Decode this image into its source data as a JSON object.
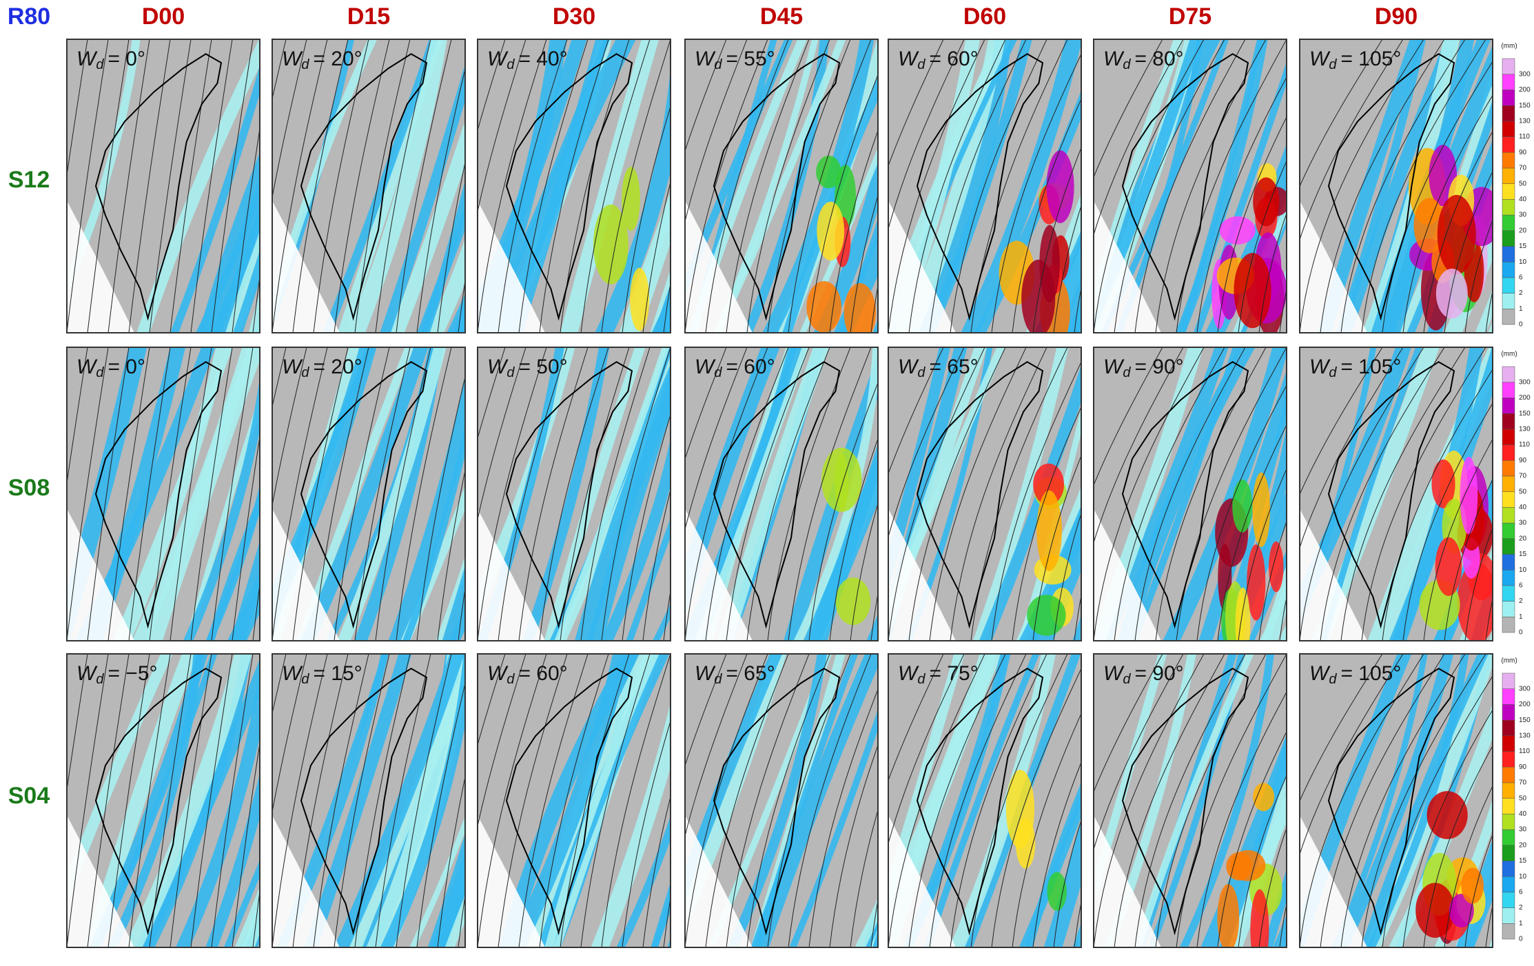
{
  "headers": {
    "corner": "R80",
    "columns": [
      "D00",
      "D15",
      "D30",
      "D45",
      "D60",
      "D75",
      "D90"
    ]
  },
  "wd_symbol": "W",
  "wd_subscript": "d",
  "rows": [
    {
      "label": "S12",
      "panels": [
        "= 0°",
        "= 20°",
        "= 40°",
        "= 55°",
        "= 60°",
        "= 80°",
        "= 105°"
      ]
    },
    {
      "label": "S08",
      "panels": [
        "= 0°",
        "= 20°",
        "= 50°",
        "= 60°",
        "= 65°",
        "= 90°",
        "= 105°"
      ]
    },
    {
      "label": "S04",
      "panels": [
        "= −5°",
        "= 15°",
        "= 60°",
        "= 65°",
        "= 75°",
        "= 90°",
        "= 105°"
      ]
    }
  ],
  "legend": {
    "unit": "(mm)",
    "levels": [
      0,
      1,
      2,
      6,
      10,
      15,
      20,
      30,
      40,
      50,
      70,
      90,
      110,
      130,
      150,
      200,
      300
    ],
    "colors": [
      "#b4b4b4",
      "#9ef0f0",
      "#33d6f0",
      "#1aa8f0",
      "#1f6fe0",
      "#1b9e1b",
      "#33cc33",
      "#b0e020",
      "#ffe020",
      "#ffb000",
      "#ff7a00",
      "#ff2020",
      "#d00000",
      "#a00020",
      "#c000c0",
      "#ff40ff",
      "#e6b0f0"
    ]
  }
}
